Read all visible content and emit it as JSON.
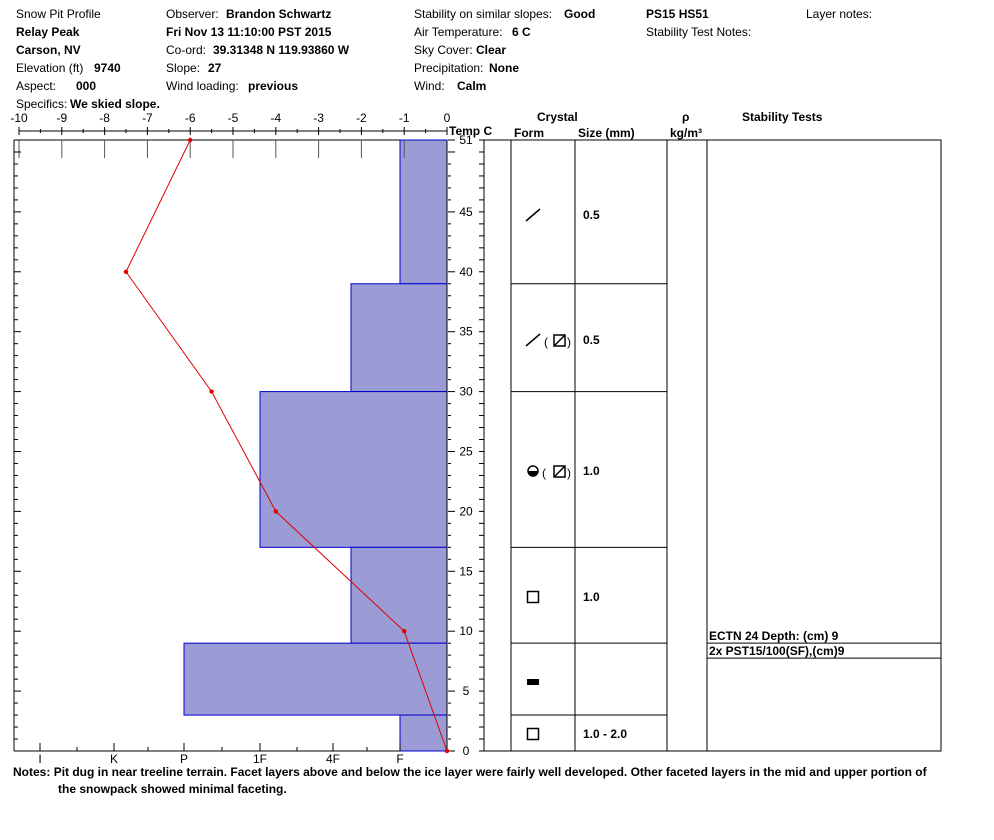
{
  "header": {
    "title": "Snow Pit Profile",
    "location_name": "Relay Peak",
    "location_area": "Carson, NV",
    "elevation_label": "Elevation (ft)",
    "elevation_value": "9740",
    "aspect_label": "Aspect:",
    "aspect_value": "000",
    "specifics_label": "Specifics:",
    "specifics_value": "We skied slope.",
    "observer_label": "Observer:",
    "observer_value": "Brandon Schwartz",
    "datetime": "Fri Nov 13 11:10:00 PST 2015",
    "coord_label": "Co-ord:",
    "coord_value": "39.31348 N 119.93860 W",
    "slope_label": "Slope:",
    "slope_value": "27",
    "wind_loading_label": "Wind loading:",
    "wind_loading_value": "previous",
    "stability_label": "Stability on similar slopes:",
    "stability_value": "Good",
    "air_temp_label": "Air Temperature:",
    "air_temp_value": "6 C",
    "sky_label": "Sky Cover:",
    "sky_value": "Clear",
    "precip_label": "Precipitation:",
    "precip_value": "None",
    "wind_label": "Wind:",
    "wind_value": "Calm",
    "pit_code": "PS15 HS51",
    "stability_notes_label": "Stability Test Notes:",
    "layer_notes_label": "Layer notes:"
  },
  "columns": {
    "temp": "Temp C",
    "crystal": "Crystal",
    "form": "Form",
    "size": "Size (mm)",
    "rho": "ρ",
    "density_unit": "kg/m³",
    "stability_tests": "Stability Tests"
  },
  "chart_data": {
    "type": "profile",
    "temp_axis": {
      "ticks": [
        -10,
        -9,
        -8,
        -7,
        -6,
        -5,
        -4,
        -3,
        -2,
        -1,
        0
      ],
      "range": [
        -10,
        0
      ]
    },
    "depth_axis": {
      "ticks": [
        0,
        5,
        10,
        15,
        20,
        25,
        30,
        35,
        40,
        45,
        51
      ],
      "range": [
        0,
        51
      ]
    },
    "hardness_axis": {
      "ticks": [
        "I",
        "K",
        "P",
        "1F",
        "4F",
        "F"
      ]
    },
    "temperature_profile": [
      {
        "height_cm": 51,
        "temp_c": -6.0
      },
      {
        "height_cm": 40,
        "temp_c": -7.5
      },
      {
        "height_cm": 30,
        "temp_c": -5.5
      },
      {
        "height_cm": 20,
        "temp_c": -4.0
      },
      {
        "height_cm": 10,
        "temp_c": -1.0
      },
      {
        "height_cm": 0,
        "temp_c": 0.0
      }
    ],
    "hardness_layers": [
      {
        "top_cm": 51,
        "bottom_cm": 39,
        "hardness": "F"
      },
      {
        "top_cm": 39,
        "bottom_cm": 30,
        "hardness": "4F+"
      },
      {
        "top_cm": 30,
        "bottom_cm": 17,
        "hardness": "1F"
      },
      {
        "top_cm": 17,
        "bottom_cm": 9,
        "hardness": "4F+"
      },
      {
        "top_cm": 9,
        "bottom_cm": 3,
        "hardness": "P"
      },
      {
        "top_cm": 3,
        "bottom_cm": 0,
        "hardness": "F"
      }
    ],
    "crystal_layers": [
      {
        "top_cm": 51,
        "bottom_cm": 39,
        "form": "precipitation-particle-fragments",
        "size": "0.5"
      },
      {
        "top_cm": 39,
        "bottom_cm": 30,
        "form": "fragments-and-mixed-forms",
        "size": "0.5"
      },
      {
        "top_cm": 30,
        "bottom_cm": 17,
        "form": "rounded-and-mixed-forms",
        "size": "1.0"
      },
      {
        "top_cm": 17,
        "bottom_cm": 9,
        "form": "faceted",
        "size": "1.0"
      },
      {
        "top_cm": 9,
        "bottom_cm": 3,
        "form": "ice-layer",
        "size": ""
      },
      {
        "top_cm": 3,
        "bottom_cm": 0,
        "form": "faceted",
        "size": "1.0 - 2.0"
      }
    ],
    "stability_tests": [
      {
        "depth_cm": 9,
        "text": "ECTN 24   Depth: (cm) 9"
      },
      {
        "depth_cm": 9,
        "text": "2x PST15/100(SF),(cm)9"
      }
    ],
    "colors": {
      "hardness_fill": "#9b9bd6",
      "hardness_edge": "#0000cc",
      "temp_line": "#e00000"
    }
  },
  "notes": {
    "label": "Notes:",
    "line1": "Pit dug in near treeline terrain. Facet layers above and below the ice layer were fairly well developed. Other faceted layers in the mid and upper portion of",
    "line2": "the snowpack showed minimal faceting."
  }
}
